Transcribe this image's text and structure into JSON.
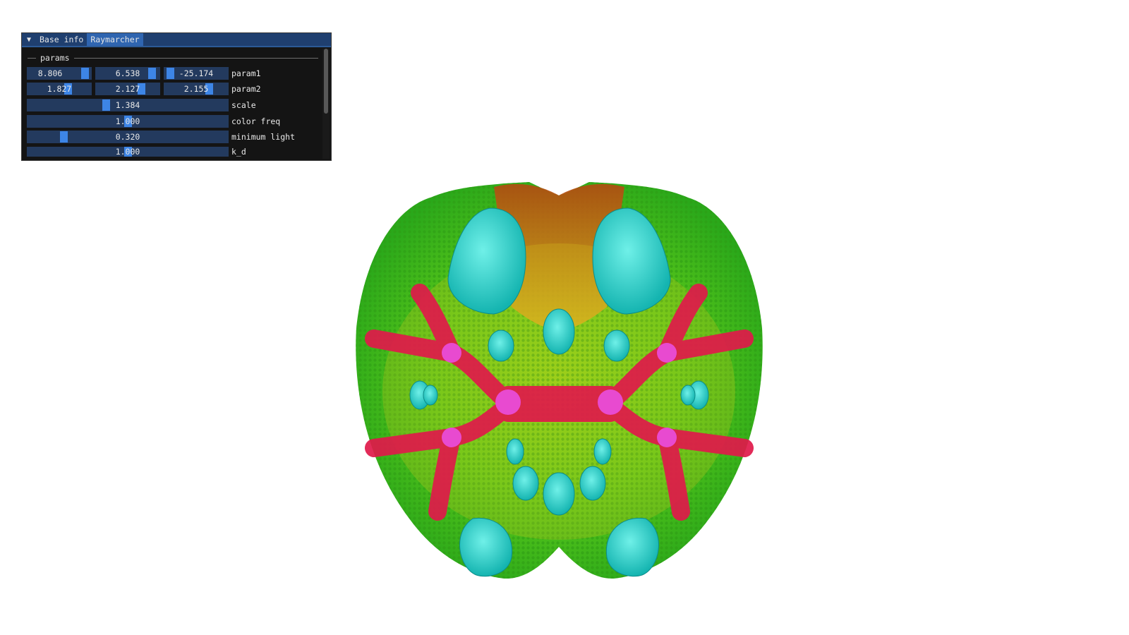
{
  "window": {
    "tabs": [
      {
        "label": "Base info",
        "active": false
      },
      {
        "label": "Raymarcher",
        "active": true
      }
    ],
    "collapse_icon": "triangle-down-icon",
    "section": "params",
    "rows": [
      {
        "label": "param1",
        "values": [
          "8.806",
          "6.538",
          "-25.174"
        ],
        "fractions": [
          0.95,
          0.92,
          0.05
        ]
      },
      {
        "label": "param2",
        "values": [
          "1.827",
          "2.127",
          "2.155"
        ],
        "fractions": [
          0.66,
          0.74,
          0.73
        ]
      },
      {
        "label": "scale",
        "values": [
          "1.384"
        ],
        "fractions": [
          0.39
        ]
      },
      {
        "label": "color freq",
        "values": [
          "1.000"
        ],
        "fractions": [
          0.5
        ]
      },
      {
        "label": "minimum light",
        "values": [
          "0.320"
        ],
        "fractions": [
          0.17
        ]
      },
      {
        "label": "k_d",
        "values": [
          "1.000"
        ],
        "fractions": [
          0.5
        ]
      }
    ]
  },
  "render": {
    "description_colors": [
      "#1fd0c8",
      "#3fc41a",
      "#e01a4a",
      "#e84ad0",
      "#d8b020",
      "#b84a10"
    ]
  }
}
